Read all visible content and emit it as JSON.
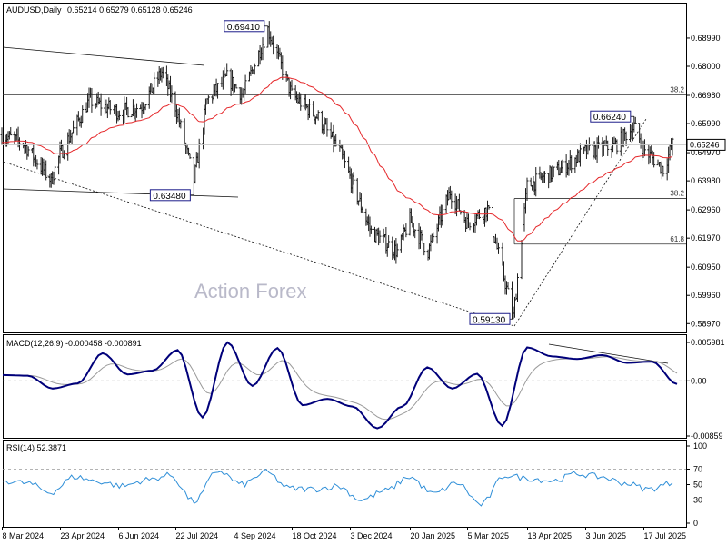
{
  "header": {
    "symbol": "AUDUSD,Daily",
    "ohlc": "0.65214 0.65279 0.65128 0.65246"
  },
  "watermark": "Action Forex",
  "colors": {
    "bars": "#1d1d1d",
    "ema": "#e5282b",
    "macd": "#00007a",
    "signal": "#9a9a9a",
    "rsi": "#2f8fd8",
    "label_border": "#1d1d8a"
  },
  "chart_data": [
    {
      "type": "ohlc",
      "pane": "price",
      "price_axis_ticks": [
        "0.68990",
        "0.68000",
        "0.66980",
        "0.65990",
        "0.64970",
        "0.63980",
        "0.62960",
        "0.61970",
        "0.60950",
        "0.59960",
        "0.58970"
      ],
      "current_price": "0.65246",
      "ylim": [
        0.5866,
        0.702
      ],
      "x_tick_labels": [
        "8 Mar 2024",
        "23 Apr 2024",
        "6 Jun 2024",
        "22 Jul 2024",
        "4 Sep 2024",
        "18 Oct 2024",
        "3 Dec 2024",
        "20 Jan 2025",
        "5 Mar 2025",
        "18 Apr 2025",
        "3 Jun 2025",
        "17 Jul 2025"
      ],
      "anchors": [
        {
          "date": "8 Mar 2024",
          "close": 0.656
        },
        {
          "date": "25 Mar 2024",
          "close": 0.653
        },
        {
          "date": "16 Apr 2024",
          "close": 0.64
        },
        {
          "date": "23 Apr 2024",
          "close": 0.649
        },
        {
          "date": "15 May 2024",
          "close": 0.668
        },
        {
          "date": "6 Jun 2024",
          "close": 0.664
        },
        {
          "date": "25 Jun 2024",
          "close": 0.666
        },
        {
          "date": "11 Jul 2024",
          "close": 0.678
        },
        {
          "date": "22 Jul 2024",
          "close": 0.666
        },
        {
          "date": "5 Aug 2024",
          "close": 0.64
        },
        {
          "date": "15 Aug 2024",
          "close": 0.668
        },
        {
          "date": "30 Aug 2024",
          "close": 0.676
        },
        {
          "date": "11 Sep 2024",
          "close": 0.67
        },
        {
          "date": "30 Sep 2024",
          "close": 0.693
        },
        {
          "date": "18 Oct 2024",
          "close": 0.67
        },
        {
          "date": "8 Nov 2024",
          "close": 0.662
        },
        {
          "date": "25 Nov 2024",
          "close": 0.65
        },
        {
          "date": "20 Dec 2024",
          "close": 0.622
        },
        {
          "date": "10 Jan 2025",
          "close": 0.615
        },
        {
          "date": "20 Jan 2025",
          "close": 0.626
        },
        {
          "date": "3 Feb 2025",
          "close": 0.615
        },
        {
          "date": "20 Feb 2025",
          "close": 0.636
        },
        {
          "date": "5 Mar 2025",
          "close": 0.625
        },
        {
          "date": "20 Mar 2025",
          "close": 0.63
        },
        {
          "date": "8 Apr 2025",
          "close": 0.592
        },
        {
          "date": "18 Apr 2025",
          "close": 0.638
        },
        {
          "date": "15 May 2025",
          "close": 0.644
        },
        {
          "date": "3 Jun 2025",
          "close": 0.65
        },
        {
          "date": "25 Jun 2025",
          "close": 0.652
        },
        {
          "date": "10 Jul 2025",
          "close": 0.659
        },
        {
          "date": "17 Jul 2025",
          "close": 0.651
        },
        {
          "date": "1 Aug 2025",
          "close": 0.644
        },
        {
          "date": "8 Aug 2025",
          "close": 0.6525
        }
      ],
      "annotations": [
        {
          "text": "0.69410",
          "value": 0.6941,
          "date": "30 Sep 2024"
        },
        {
          "text": "0.63480",
          "value": 0.6348,
          "date": "5 Aug 2024"
        },
        {
          "text": "0.66240",
          "value": 0.6624,
          "date": "10 Jul 2025"
        },
        {
          "text": "0.59130",
          "value": 0.5913,
          "date": "8 Apr 2025"
        }
      ],
      "fib_levels": [
        {
          "label": "38.2",
          "value": 0.67
        },
        {
          "label": "38.2",
          "value": 0.6336
        },
        {
          "label": "61.8",
          "value": 0.6176
        }
      ]
    },
    {
      "type": "line",
      "pane": "macd",
      "title": "MACD(12,26,9) -0.000458 -0.000891",
      "axis_ticks": [
        "0.005981",
        "0.00",
        "-0.00859"
      ],
      "ylim": [
        -0.00859,
        0.005981
      ],
      "series": [
        {
          "values": [
            0.0009,
            0.0008,
            -0.0012,
            -0.0004,
            0.0043,
            0.001,
            0.0016,
            0.0048,
            -0.0057,
            0.006,
            -0.0008,
            0.0051,
            -0.0038,
            -0.0028,
            -0.004,
            -0.0074,
            -0.004,
            0.0021,
            -0.0012,
            0.0011,
            -0.007,
            0.0052,
            0.0038,
            0.0034,
            0.004,
            0.0028,
            0.003,
            -0.0005
          ]
        }
      ]
    },
    {
      "type": "line",
      "pane": "rsi",
      "title": "RSI(14) 52.3871",
      "axis_ticks": [
        "100",
        "70",
        "50",
        "30",
        "0"
      ],
      "ylim": [
        0,
        100
      ],
      "series": [
        {
          "values": [
            55,
            52,
            40,
            60,
            54,
            48,
            56,
            62,
            28,
            68,
            50,
            66,
            45,
            44,
            48,
            30,
            42,
            60,
            38,
            52,
            24,
            62,
            58,
            55,
            64,
            60,
            52,
            44,
            52
          ]
        }
      ]
    }
  ]
}
